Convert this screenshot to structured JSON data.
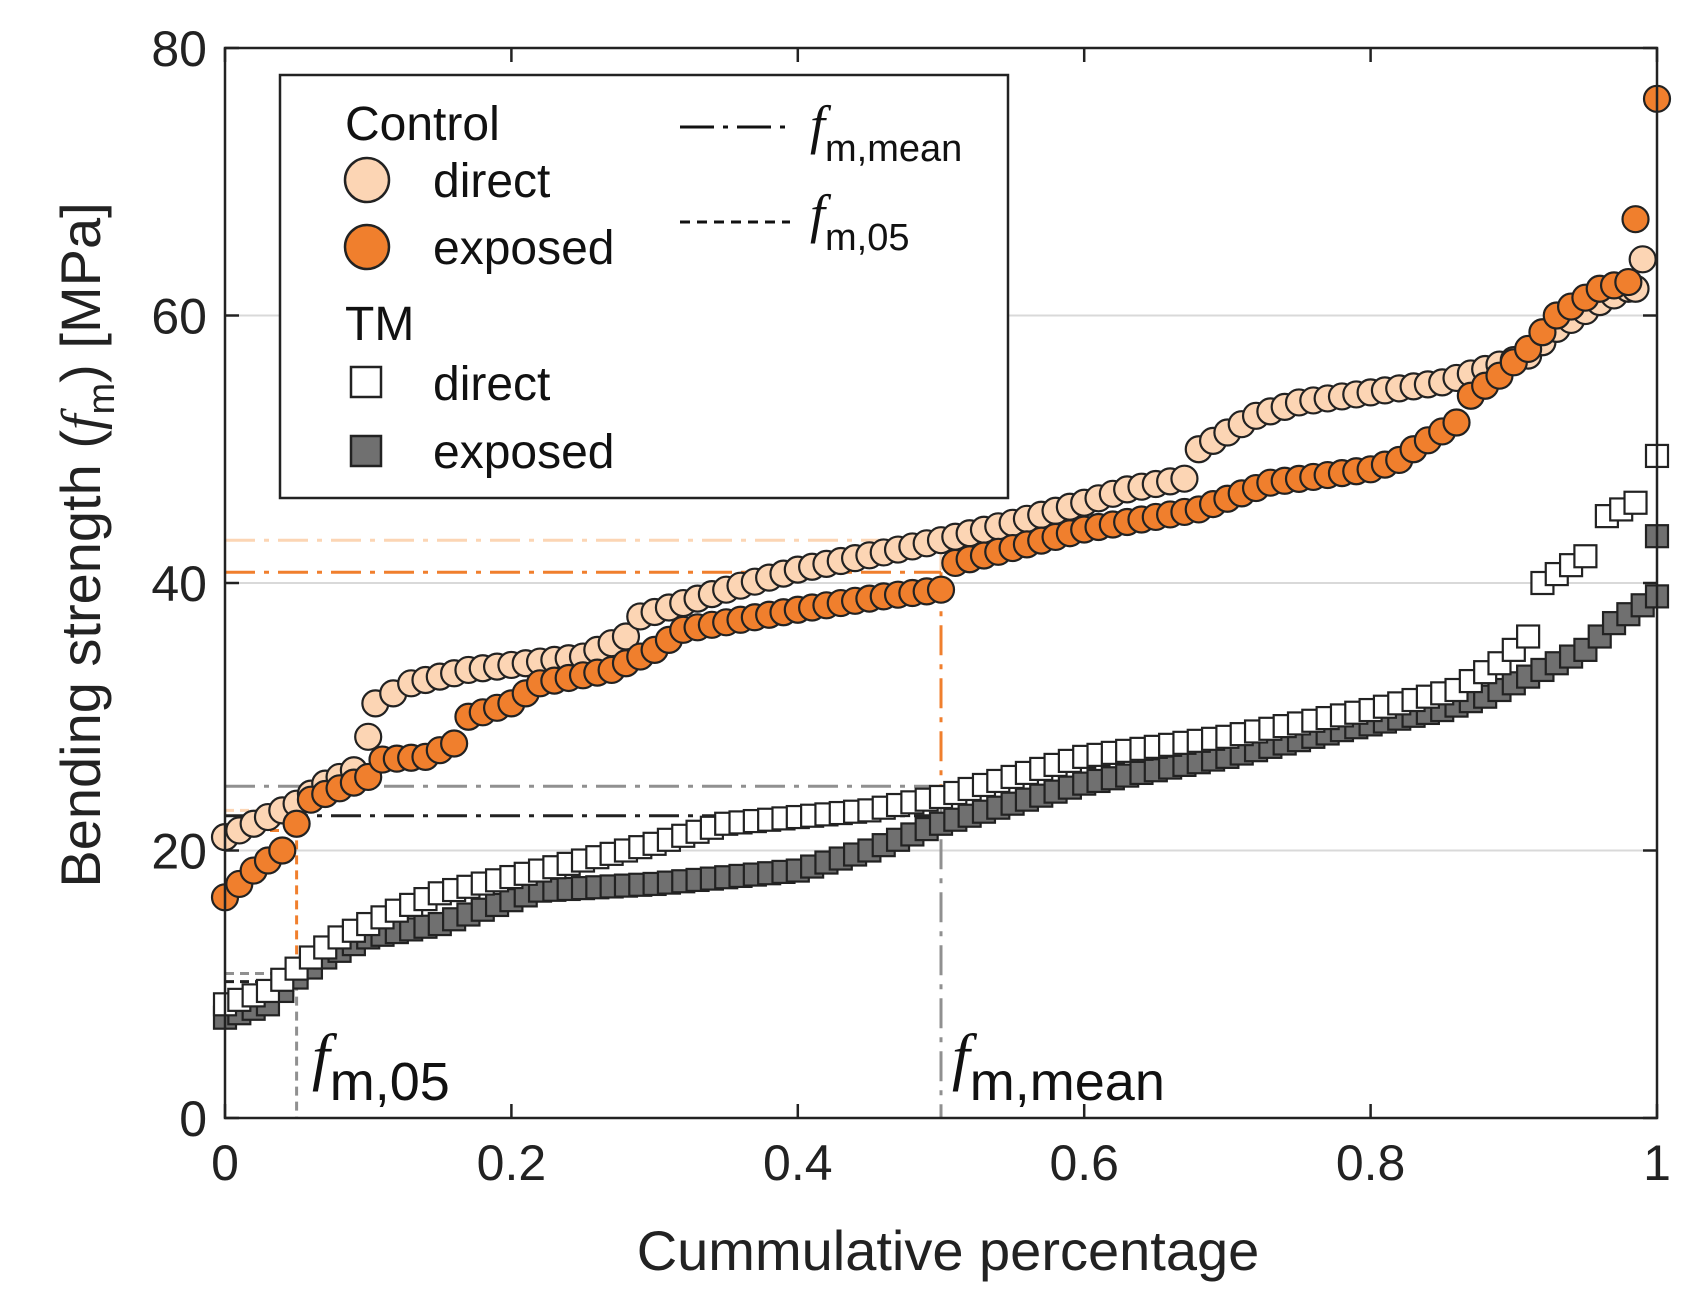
{
  "chart_data": {
    "type": "scatter",
    "xlabel": "Cummulative percentage",
    "ylabel_prefix": "Bending strength (",
    "ylabel_symbol": "f",
    "ylabel_subscript": "m",
    "ylabel_suffix": ") [MPa]",
    "xlim": [
      0,
      1
    ],
    "ylim": [
      0,
      80
    ],
    "xticks": [
      "0",
      "0.2",
      "0.4",
      "0.6",
      "0.8",
      "1"
    ],
    "xtick_values": [
      0,
      0.2,
      0.4,
      0.6,
      0.8,
      1
    ],
    "yticks": [
      "0",
      "20",
      "40",
      "60",
      "80"
    ],
    "ytick_values": [
      0,
      20,
      40,
      60,
      80
    ],
    "grid": "horizontal",
    "legend": {
      "placement": "top-left",
      "groups": [
        {
          "title": "Control",
          "entries": [
            {
              "label": "direct",
              "marker": "circle",
              "color": "#fcd5b4"
            },
            {
              "label": "exposed",
              "marker": "circle",
              "color": "#f07f2d"
            }
          ]
        },
        {
          "title": "TM",
          "entries": [
            {
              "label": "direct",
              "marker": "square",
              "color": "#ffffff"
            },
            {
              "label": "exposed",
              "marker": "square",
              "color": "#707070"
            }
          ]
        }
      ],
      "line_entries": [
        {
          "symbol": "f",
          "subscript": "m,mean",
          "style": "dash-dot"
        },
        {
          "symbol": "f",
          "subscript": "m,05",
          "style": "dashed"
        }
      ]
    },
    "series": [
      {
        "group": "Control",
        "condition": "direct",
        "marker": "circle",
        "color": "#fcd5b4",
        "fm_mean": 43.2,
        "fm_05": 23.0,
        "anchors": [
          [
            0,
            21
          ],
          [
            0.02,
            22
          ],
          [
            0.05,
            23.5
          ],
          [
            0.07,
            25
          ],
          [
            0.09,
            26
          ],
          [
            0.1,
            28.5
          ],
          [
            0.105,
            31
          ],
          [
            0.13,
            32.5
          ],
          [
            0.17,
            33.5
          ],
          [
            0.25,
            34.5
          ],
          [
            0.28,
            36
          ],
          [
            0.29,
            37.5
          ],
          [
            0.35,
            39.5
          ],
          [
            0.4,
            41
          ],
          [
            0.47,
            42.5
          ],
          [
            0.5,
            43.2
          ],
          [
            0.55,
            44.5
          ],
          [
            0.6,
            46
          ],
          [
            0.63,
            47
          ],
          [
            0.67,
            47.8
          ],
          [
            0.68,
            50
          ],
          [
            0.72,
            52.5
          ],
          [
            0.75,
            53.5
          ],
          [
            0.85,
            55
          ],
          [
            0.88,
            56
          ],
          [
            0.91,
            57
          ],
          [
            0.93,
            59
          ],
          [
            0.96,
            61
          ],
          [
            0.98,
            62
          ],
          [
            0.985,
            62
          ],
          [
            0.99,
            64.2
          ]
        ]
      },
      {
        "group": "Control",
        "condition": "exposed",
        "marker": "circle",
        "color": "#f07f2d",
        "fm_mean": 40.8,
        "fm_05": 21.5,
        "anchors": [
          [
            0,
            16.5
          ],
          [
            0.01,
            17.5
          ],
          [
            0.02,
            18.5
          ],
          [
            0.04,
            20
          ],
          [
            0.05,
            22
          ],
          [
            0.06,
            23.8
          ],
          [
            0.1,
            25.5
          ],
          [
            0.11,
            26.8
          ],
          [
            0.14,
            27
          ],
          [
            0.16,
            28
          ],
          [
            0.17,
            30
          ],
          [
            0.2,
            31
          ],
          [
            0.22,
            32.5
          ],
          [
            0.27,
            33.5
          ],
          [
            0.3,
            35
          ],
          [
            0.32,
            36.5
          ],
          [
            0.4,
            38
          ],
          [
            0.46,
            39
          ],
          [
            0.5,
            39.5
          ],
          [
            0.51,
            41.5
          ],
          [
            0.6,
            44
          ],
          [
            0.68,
            45.5
          ],
          [
            0.73,
            47.5
          ],
          [
            0.8,
            48.5
          ],
          [
            0.82,
            49.2
          ],
          [
            0.83,
            50
          ],
          [
            0.86,
            52
          ],
          [
            0.87,
            54
          ],
          [
            0.89,
            55.5
          ],
          [
            0.91,
            57.5
          ],
          [
            0.93,
            60
          ],
          [
            0.96,
            62
          ],
          [
            0.98,
            62.5
          ],
          [
            0.985,
            67.2
          ],
          [
            1.0,
            76.2
          ]
        ]
      },
      {
        "group": "TM",
        "condition": "direct",
        "marker": "square",
        "color": "#ffffff",
        "fm_mean": 24.8,
        "fm_05": 10.8,
        "anchors": [
          [
            0,
            8.5
          ],
          [
            0.03,
            9.5
          ],
          [
            0.06,
            12
          ],
          [
            0.08,
            13.5
          ],
          [
            0.12,
            15.5
          ],
          [
            0.15,
            16.8
          ],
          [
            0.22,
            18.5
          ],
          [
            0.3,
            20.5
          ],
          [
            0.35,
            22
          ],
          [
            0.45,
            23
          ],
          [
            0.5,
            24
          ],
          [
            0.55,
            25.5
          ],
          [
            0.6,
            27
          ],
          [
            0.7,
            28.5
          ],
          [
            0.8,
            30.5
          ],
          [
            0.86,
            32
          ],
          [
            0.89,
            34
          ],
          [
            0.91,
            36
          ],
          [
            0.92,
            40
          ],
          [
            0.95,
            42
          ],
          [
            0.965,
            45
          ],
          [
            0.985,
            46
          ],
          [
            1.0,
            49.5
          ]
        ]
      },
      {
        "group": "TM",
        "condition": "exposed",
        "marker": "square",
        "color": "#707070",
        "fm_mean": 22.6,
        "fm_05": 10.2,
        "anchors": [
          [
            0,
            7.5
          ],
          [
            0.03,
            8.5
          ],
          [
            0.05,
            10.5
          ],
          [
            0.07,
            12
          ],
          [
            0.1,
            13.5
          ],
          [
            0.15,
            14.5
          ],
          [
            0.22,
            17
          ],
          [
            0.3,
            17.5
          ],
          [
            0.4,
            18.5
          ],
          [
            0.45,
            20
          ],
          [
            0.5,
            22
          ],
          [
            0.55,
            23.5
          ],
          [
            0.6,
            25
          ],
          [
            0.7,
            27
          ],
          [
            0.78,
            29
          ],
          [
            0.85,
            30.5
          ],
          [
            0.88,
            31.5
          ],
          [
            0.93,
            34
          ],
          [
            0.95,
            35
          ],
          [
            0.97,
            37
          ],
          [
            1.0,
            39
          ],
          [
            1.0,
            43.5
          ]
        ]
      }
    ],
    "annotations": [
      {
        "symbol": "f",
        "subscript": "m,05",
        "x": 0.05
      },
      {
        "symbol": "f",
        "subscript": "m,mean",
        "x": 0.5
      }
    ]
  }
}
